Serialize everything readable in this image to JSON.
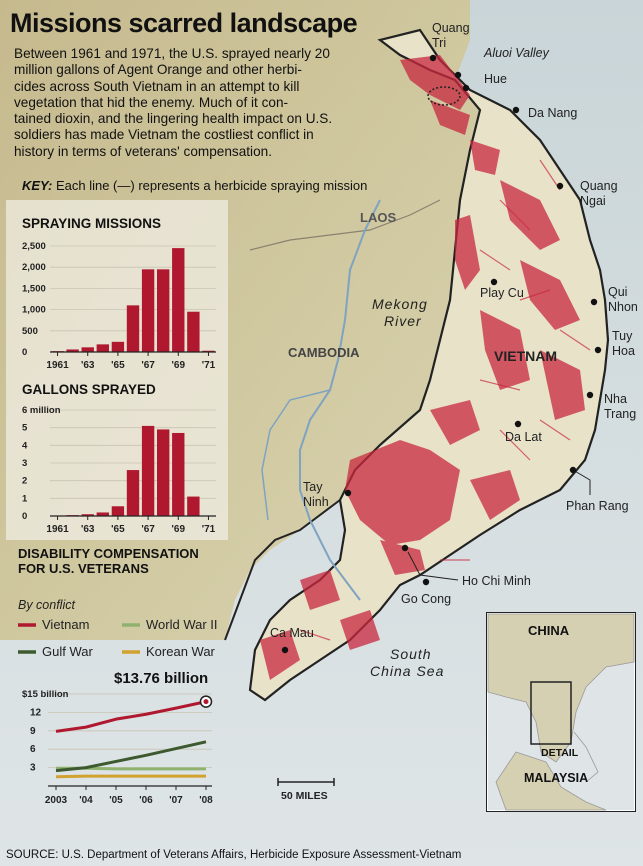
{
  "header": {
    "title": "Missions scarred landscape",
    "intro_lines": [
      "Between 1961 and 1971, the U.S. sprayed nearly 20",
      "million gallons of Agent Orange and other herbi-",
      "cides across South Vietnam in an attempt to kill",
      "vegetation that hid the enemy. Much of it con-",
      "tained dioxin, and the lingering health impact on U.S.",
      "soldiers has made Vietnam the costliest conflict in",
      "history in terms of veterans' compensation."
    ],
    "key_label": "KEY:",
    "key_text": "Each line (—) represents a herbicide spraying mission"
  },
  "map": {
    "labels": {
      "laos": "LAOS",
      "cambodia": "CAMBODIA",
      "vietnam": "VIETNAM",
      "mekong": "Mekong",
      "river": "River",
      "south": "South",
      "china_sea": "China Sea",
      "scale": "50 MILES"
    },
    "cities": [
      {
        "id": "quang-tri",
        "lines": [
          "Quang",
          "Tri"
        ]
      },
      {
        "id": "aluoi-valley",
        "lines": [
          "Aluoi Valley"
        ]
      },
      {
        "id": "hue",
        "lines": [
          "Hue"
        ]
      },
      {
        "id": "da-nang",
        "lines": [
          "Da Nang"
        ]
      },
      {
        "id": "quang-ngai",
        "lines": [
          "Quang",
          "Ngai"
        ]
      },
      {
        "id": "play-cu",
        "lines": [
          "Play Cu"
        ]
      },
      {
        "id": "qui-nhon",
        "lines": [
          "Qui",
          "Nhon"
        ]
      },
      {
        "id": "tuy-hoa",
        "lines": [
          "Tuy",
          "Hoa"
        ]
      },
      {
        "id": "nha-trang",
        "lines": [
          "Nha",
          "Trang"
        ]
      },
      {
        "id": "da-lat",
        "lines": [
          "Da Lat"
        ]
      },
      {
        "id": "phan-rang",
        "lines": [
          "Phan Rang"
        ]
      },
      {
        "id": "tay-ninh",
        "lines": [
          "Tay",
          "Ninh"
        ]
      },
      {
        "id": "ho-chi-minh",
        "lines": [
          "Ho Chi Minh"
        ]
      },
      {
        "id": "go-cong",
        "lines": [
          "Go Cong"
        ]
      },
      {
        "id": "ca-mau",
        "lines": [
          "Ca Mau"
        ]
      }
    ],
    "inset": {
      "china": "CHINA",
      "detail": "DETAIL",
      "malaysia": "MALAYSIA"
    }
  },
  "chart_data": [
    {
      "type": "bar",
      "title": "SPRAYING MISSIONS",
      "categories": [
        "1961",
        "1962",
        "1963",
        "1964",
        "1965",
        "1966",
        "1967",
        "1968",
        "1969",
        "1970",
        "1971"
      ],
      "tick_labels": [
        "1961",
        "'63",
        "'65",
        "'67",
        "'69",
        "'71"
      ],
      "values": [
        20,
        60,
        110,
        180,
        240,
        1100,
        1950,
        1950,
        2450,
        950,
        30
      ],
      "y_ticks": [
        "2,500",
        "2,000",
        "1,500",
        "1,000",
        "500",
        "0"
      ],
      "ylim": [
        0,
        2500
      ],
      "color": "#b0182f"
    },
    {
      "type": "bar",
      "title": "GALLONS SPRAYED",
      "categories": [
        "1961",
        "1962",
        "1963",
        "1964",
        "1965",
        "1966",
        "1967",
        "1968",
        "1969",
        "1970",
        "1971"
      ],
      "tick_labels": [
        "1961",
        "'63",
        "'65",
        "'67",
        "'69",
        "'71"
      ],
      "values": [
        0.01,
        0.05,
        0.1,
        0.2,
        0.55,
        2.6,
        5.1,
        4.9,
        4.7,
        1.1,
        0.02
      ],
      "y_ticks": [
        "6 million",
        "5",
        "4",
        "3",
        "2",
        "1",
        "0"
      ],
      "ylim": [
        0,
        6
      ],
      "color": "#b0182f"
    },
    {
      "type": "line",
      "title": "DISABILITY COMPENSATION FOR U.S. VETERANS",
      "subtitle": "By conflict",
      "x": [
        "2003",
        "'04",
        "'05",
        "'06",
        "'07",
        "'08"
      ],
      "y_ticks": [
        "$15 billion",
        "12",
        "9",
        "6",
        "3"
      ],
      "ylim": [
        0,
        15
      ],
      "annotation": "$13.76 billion",
      "series": [
        {
          "name": "Vietnam",
          "color": "#b0182f",
          "values": [
            8.9,
            9.6,
            10.9,
            11.7,
            12.7,
            13.76
          ]
        },
        {
          "name": "World War II",
          "color": "#8fb36f",
          "values": [
            2.9,
            2.9,
            2.8,
            2.8,
            2.8,
            2.8
          ]
        },
        {
          "name": "Gulf War",
          "color": "#3c5a2e",
          "values": [
            2.5,
            3.0,
            4.0,
            5.0,
            6.1,
            7.2
          ]
        },
        {
          "name": "Korean War",
          "color": "#d2a22e",
          "values": [
            1.5,
            1.6,
            1.6,
            1.6,
            1.6,
            1.6
          ]
        }
      ]
    }
  ],
  "footer": {
    "source": "SOURCE: U.S. Department of Veterans Affairs, Herbicide Exposure Assessment-Vietnam"
  }
}
